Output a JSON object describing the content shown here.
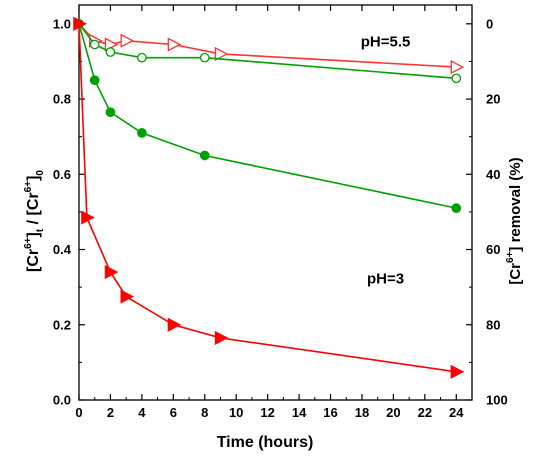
{
  "chart_data": {
    "type": "line",
    "title": "",
    "xlabel": "Time (hours)",
    "ylabel": {
      "main": "[Cr",
      "sup1": "6+",
      "sub1": "t",
      "mid": " / [Cr",
      "sup2": "6+",
      "close": "]",
      "sub2": "0"
    },
    "y2label": {
      "pre": "[Cr",
      "sup": "6+",
      "post": "] removal (%)"
    },
    "xlim": [
      0,
      25
    ],
    "ylim": [
      0,
      1.05
    ],
    "y2lim": [
      100,
      0
    ],
    "xticks": [
      0,
      2,
      4,
      6,
      8,
      10,
      12,
      14,
      16,
      18,
      20,
      22,
      24
    ],
    "yticks": [
      0.0,
      0.2,
      0.4,
      0.6,
      0.8,
      1.0
    ],
    "ytick_labels": [
      "0.0",
      "0.2",
      "0.4",
      "0.6",
      "0.8",
      "1.0"
    ],
    "y2ticks": [
      0,
      20,
      40,
      60,
      80,
      100
    ],
    "annotations": [
      {
        "text": "pH=5.5",
        "x": 19.5,
        "y": 0.94
      },
      {
        "text": "pH=3",
        "x": 19.5,
        "y": 0.31
      }
    ],
    "series": [
      {
        "color": "#ff3333",
        "marker": "triangle-right-open",
        "x": [
          0,
          1,
          2,
          3,
          6,
          9,
          24
        ],
        "y": [
          1.0,
          0.955,
          0.945,
          0.955,
          0.945,
          0.92,
          0.885
        ]
      },
      {
        "color": "#00a000",
        "marker": "circle-open",
        "x": [
          0,
          1,
          2,
          4,
          8,
          24
        ],
        "y": [
          1.0,
          0.945,
          0.925,
          0.91,
          0.91,
          0.855
        ]
      },
      {
        "color": "#00a000",
        "marker": "circle-filled",
        "x": [
          0,
          1,
          2,
          4,
          8,
          24
        ],
        "y": [
          1.0,
          0.85,
          0.765,
          0.71,
          0.65,
          0.51
        ]
      },
      {
        "color": "#ff0000",
        "marker": "triangle-right-filled",
        "x": [
          0,
          0.5,
          2,
          3,
          6,
          9,
          24
        ],
        "y": [
          1.0,
          0.485,
          0.34,
          0.275,
          0.2,
          0.165,
          0.075
        ]
      }
    ]
  }
}
